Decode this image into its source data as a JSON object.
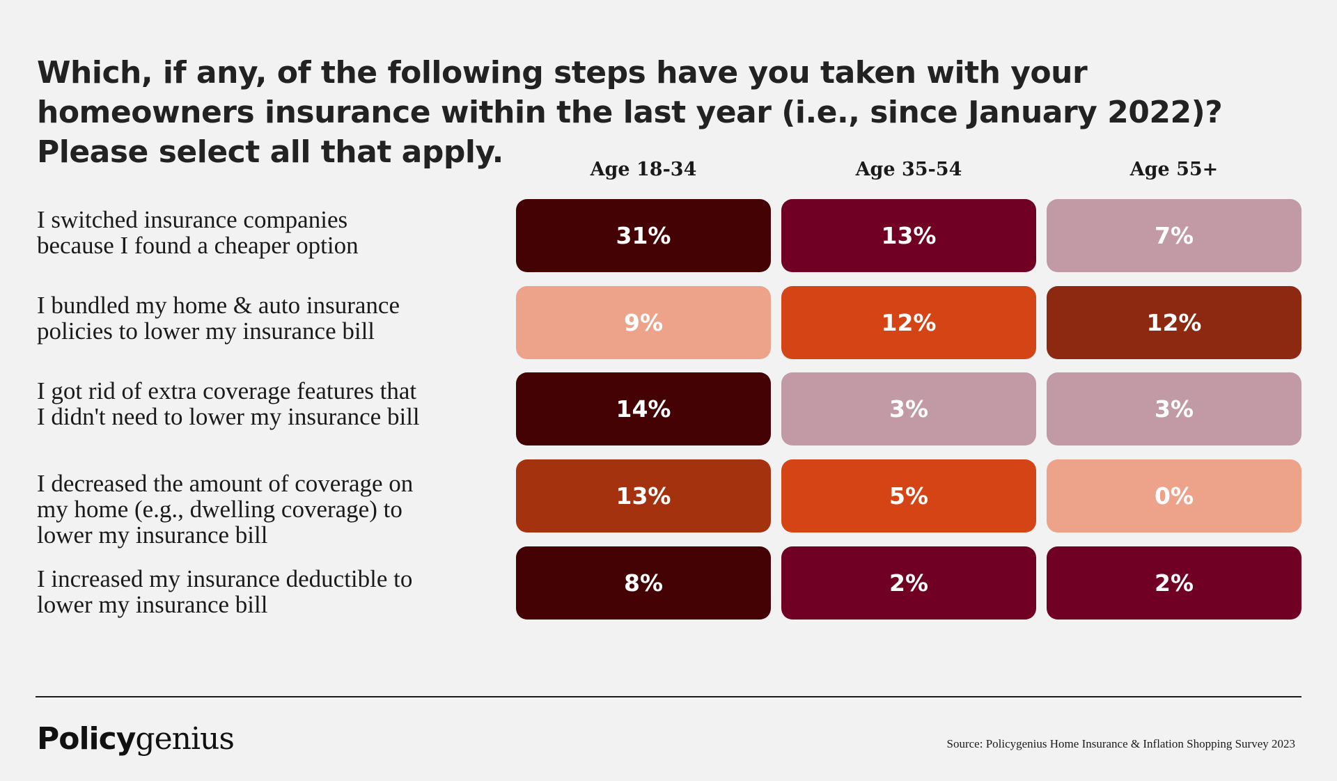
{
  "title": "Which, if any, of the following steps have you taken with your homeowners insurance within the last year (i.e., since January 2022)? Please select all that apply.",
  "chart_data": {
    "type": "table",
    "title": "Which, if any, of the following steps have you taken with your homeowners insurance within the last year (i.e., since January 2022)? Please select all that apply.",
    "columns": [
      "Age 18-34",
      "Age 35-54",
      "Age 55+"
    ],
    "rows": [
      {
        "label_lines": [
          "I switched insurance companies",
          "because I found a cheaper option"
        ],
        "values": [
          "31%",
          "13%",
          "7%"
        ],
        "colors": [
          "#450204",
          "#700124",
          "#c19aa6"
        ]
      },
      {
        "label_lines": [
          "I bundled my home & auto insurance",
          "policies to lower my insurance bill"
        ],
        "values": [
          "9%",
          "12%",
          "12%"
        ],
        "colors": [
          "#eca38a",
          "#d44414",
          "#8c2910"
        ]
      },
      {
        "label_lines": [
          "I got rid of extra coverage features that",
          "I didn't need to lower my insurance bill"
        ],
        "values": [
          "14%",
          "3%",
          "3%"
        ],
        "colors": [
          "#450204",
          "#c19aa6",
          "#c19aa6"
        ]
      },
      {
        "label_lines": [
          "I decreased the amount of coverage on",
          "my home (e.g., dwelling coverage) to",
          "lower my insurance bill"
        ],
        "values": [
          "13%",
          "5%",
          "0%"
        ],
        "colors": [
          "#a5320e",
          "#d44414",
          "#eca38a"
        ]
      },
      {
        "label_lines": [
          "I increased my insurance deductible to",
          "lower my insurance bill"
        ],
        "values": [
          "8%",
          "2%",
          "2%"
        ],
        "colors": [
          "#450204",
          "#700124",
          "#700124"
        ]
      }
    ]
  },
  "footer": {
    "logo_bold": "Policy",
    "logo_light": "genius",
    "source": "Source: Policygenius Home Insurance & Inflation Shopping Survey 2023"
  }
}
